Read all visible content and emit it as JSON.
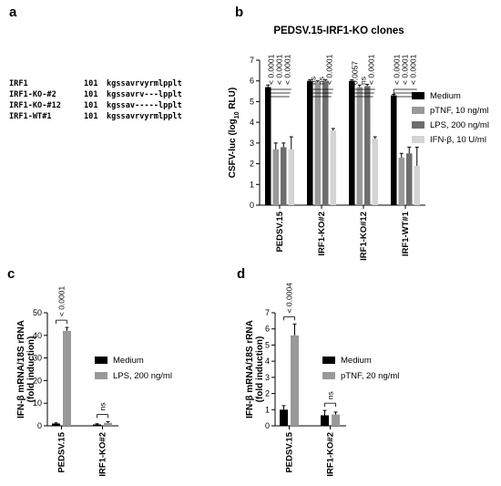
{
  "panels": {
    "a": {
      "letter": "a",
      "rows": [
        {
          "name": "IRF1",
          "pos": "101",
          "seq": "kgssavrvyrmlpplt"
        },
        {
          "name": "IRF1-KO-#2",
          "pos": "101",
          "seq": "kgssavrv---lpplt"
        },
        {
          "name": "IRF1-KO-#12",
          "pos": "101",
          "seq": "kgssav-----lpplt"
        },
        {
          "name": "IRF1-WT#1",
          "pos": "101",
          "seq": "kgssavrvyrmlpplt"
        }
      ]
    },
    "b": {
      "letter": "b"
    },
    "c": {
      "letter": "c"
    },
    "d": {
      "letter": "d"
    }
  },
  "chart_data": [
    {
      "id": "b",
      "type": "bar",
      "title": "PEDSV.15-IRF1-KO clones",
      "ylabel_prefix": "CSFV-luc (log",
      "ylabel_sub": "10",
      "ylabel_suffix": " RLU)",
      "ylim": [
        0,
        7
      ],
      "yticks": [
        0,
        1,
        2,
        3,
        4,
        5,
        6,
        7
      ],
      "categories": [
        "PEDSV.15",
        "IRF1-KO#2",
        "IRF1-KO#12",
        "IRF1-WT#1"
      ],
      "series": [
        {
          "name": "Medium",
          "color": "#000000",
          "values": [
            5.7,
            6.0,
            6.0,
            5.3
          ],
          "errors": [
            0.1,
            0.05,
            0.05,
            0.05
          ]
        },
        {
          "name": "pTNF, 10 ng/ml",
          "color": "#999999",
          "values": [
            2.7,
            5.95,
            5.7,
            2.3
          ],
          "errors": [
            0.3,
            0.05,
            0.1,
            0.2
          ]
        },
        {
          "name": "LPS, 200 ng/ml",
          "color": "#6e6e6e",
          "values": [
            2.8,
            6.0,
            5.75,
            2.5
          ],
          "errors": [
            0.2,
            0.05,
            0.08,
            0.3
          ]
        },
        {
          "name": "IFN-β, 10 U/ml",
          "color": "#d4d4d4",
          "values": [
            2.7,
            3.6,
            3.2,
            1.9
          ],
          "errors": [
            0.6,
            0.1,
            0.1,
            0.9
          ]
        }
      ],
      "significance": [
        [
          "< 0.0001",
          "< 0.0001",
          "< 0.0001"
        ],
        [
          "ns",
          "ns",
          "< 0.0001"
        ],
        [
          "0.0057",
          "ns",
          "< 0.0001"
        ],
        [
          "< 0.0001",
          "< 0.0001",
          "< 0.0001"
        ]
      ],
      "legend_position": "right"
    },
    {
      "id": "c",
      "type": "bar",
      "ylabel_lines": [
        "IFN-β mRNA/18S rRNA",
        "(fold induction)"
      ],
      "ylim": [
        0,
        50
      ],
      "yticks": [
        0,
        10,
        20,
        30,
        40,
        50
      ],
      "categories": [
        "PEDSV.15",
        "IRF1-KO#2"
      ],
      "series": [
        {
          "name": "Medium",
          "color": "#000000",
          "values": [
            1.0,
            0.6
          ],
          "errors": [
            0.3,
            0.3
          ]
        },
        {
          "name": "LPS, 200 ng/ml",
          "color": "#999999",
          "values": [
            42.0,
            1.3
          ],
          "errors": [
            1.5,
            0.5
          ]
        }
      ],
      "significance": [
        "< 0.0001",
        "ns"
      ],
      "legend_position": "right"
    },
    {
      "id": "d",
      "type": "bar",
      "ylabel_lines": [
        "IFN-β mRNA/18S rRNA",
        "(fold induction)"
      ],
      "ylim": [
        0,
        7
      ],
      "yticks": [
        0,
        1,
        2,
        3,
        4,
        5,
        6,
        7
      ],
      "categories": [
        "PEDSV.15",
        "IRF1-KO#2"
      ],
      "series": [
        {
          "name": "Medium",
          "color": "#000000",
          "values": [
            1.0,
            0.65
          ],
          "errors": [
            0.25,
            0.3
          ]
        },
        {
          "name": "pTNF, 20 ng/ml",
          "color": "#999999",
          "values": [
            5.6,
            0.7
          ],
          "errors": [
            0.7,
            0.15
          ]
        }
      ],
      "significance": [
        "< 0.0004",
        "ns"
      ],
      "legend_position": "right"
    }
  ]
}
